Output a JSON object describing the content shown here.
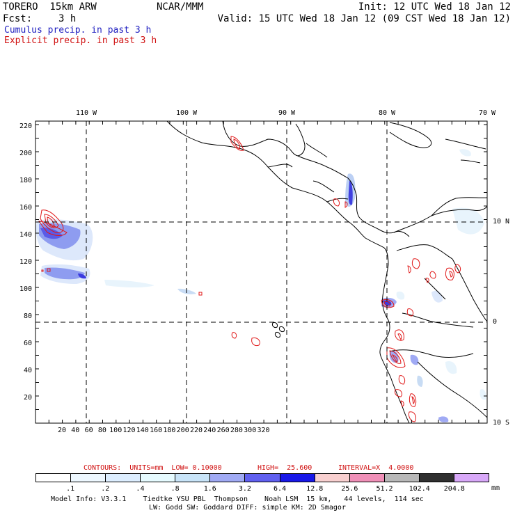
{
  "header": {
    "model": "TORERO  15km ARW",
    "org": "NCAR/MMM",
    "init": "Init: 12 UTC Wed 18 Jan 12",
    "fcst_label": "Fcst:",
    "fcst_value": "3 h",
    "valid": "Valid: 15 UTC Wed 18 Jan 12 (09 CST Wed 18 Jan 12)",
    "field1": "Cumulus precip. in past 3 h",
    "field2": "Explicit precip. in past 3 h"
  },
  "colors": {
    "field1": "#2020c0",
    "field2": "#d01010",
    "contour": "#e01818"
  },
  "map": {
    "lon_labels": [
      "110 W",
      "100 W",
      "90 W",
      "80 W",
      "70 W"
    ],
    "lat_labels": [
      "10 N",
      "0",
      "10 S"
    ],
    "x_ticks": [
      "20",
      "40",
      "60",
      "80",
      "100",
      "120",
      "140",
      "160",
      "180",
      "200",
      "220",
      "240",
      "260",
      "280",
      "300",
      "320"
    ],
    "y_ticks": [
      "220",
      "200",
      "180",
      "160",
      "140",
      "120",
      "100",
      "80",
      "60",
      "40",
      "20"
    ]
  },
  "contour_info": {
    "units": "CONTOURS:  UNITS=mm  LOW= 0.10000",
    "high": "HIGH=  25.600",
    "interval": "INTERVAL=X  4.0000"
  },
  "colorbar": {
    "labels": [
      ".1",
      ".2",
      ".4",
      ".8",
      "1.6",
      "3.2",
      "6.4",
      "12.8",
      "25.6",
      "51.2",
      "102.4",
      "204.8"
    ],
    "unit": "mm",
    "colors": [
      "#ffffff",
      "#eef8ff",
      "#ddeeff",
      "#e6fbff",
      "#c8e4f8",
      "#a0aaf4",
      "#6060f0",
      "#1818e8",
      "#f8d0d0",
      "#f090b8",
      "#b8b8b8",
      "#303030",
      "#d8a8f8"
    ]
  },
  "footer": {
    "line1": "Model Info: V3.3.1    Tiedtke YSU PBL  Thompson    Noah LSM  15 km,   44 levels,  114 sec",
    "line2": "LW: Godd SW: Goddard DIFF: simple KM: 2D Smagor"
  }
}
